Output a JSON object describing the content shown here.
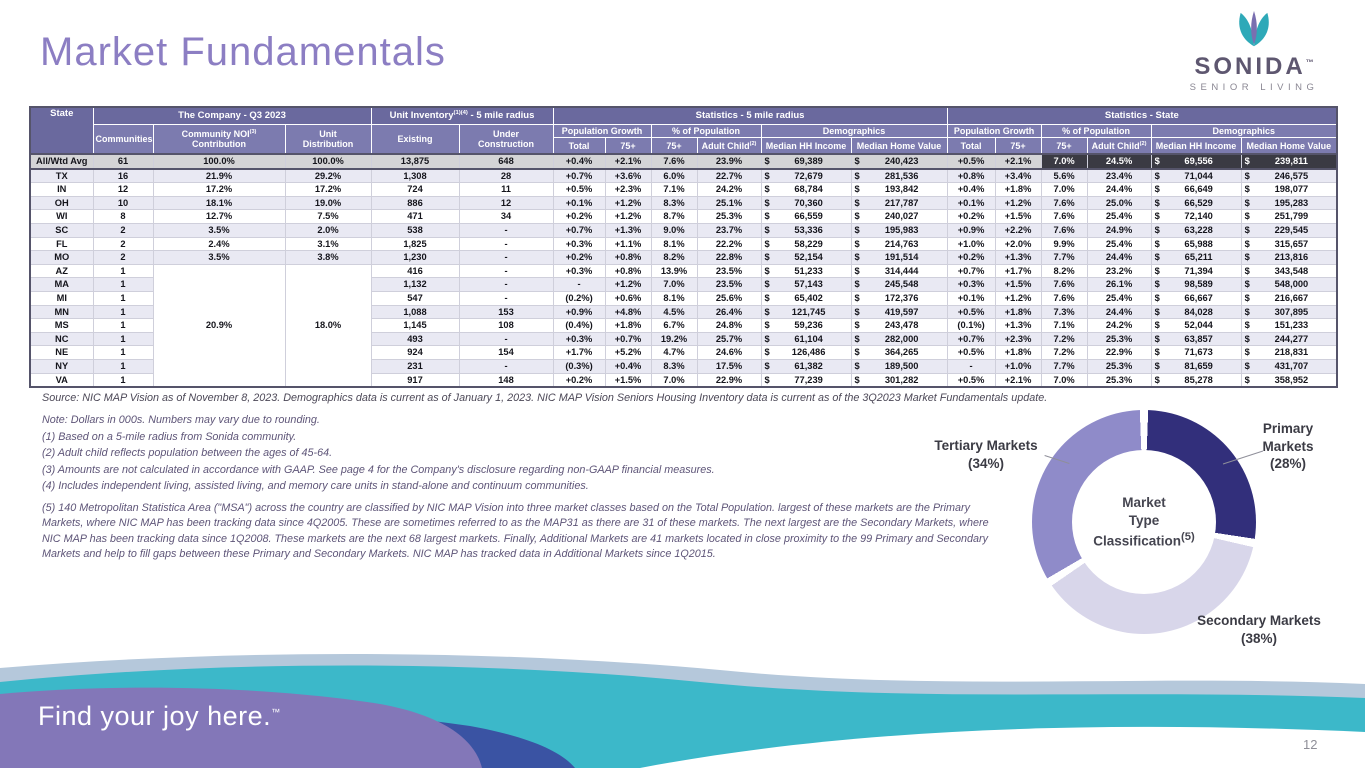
{
  "page": {
    "title": "Market Fundamentals",
    "page_number": "12",
    "tagline": "Find your joy here.",
    "tagline_tm": "™"
  },
  "logo": {
    "brand": "SONIDA",
    "tm": "™",
    "subtitle": "SENIOR LIVING"
  },
  "table": {
    "h": {
      "state": "State",
      "company": "The Company - Q3 2023",
      "inventory_a": "Unit Inventory",
      "inventory_sup": "(1)(4)",
      "inventory_b": " - 5 mile radius",
      "stats5": "Statistics - 5 mile radius",
      "statsState": "Statistics - State",
      "communities": "Communities",
      "noi_a": "Community NOI",
      "noi_sup": "(3)",
      "noi_b": "Contribution",
      "unit_a": "Unit",
      "unit_b": "Distribution",
      "existing": "Existing",
      "under_a": "Under",
      "under_b": "Construction",
      "pop_growth": "Population Growth",
      "pct_pop": "% of Population",
      "demographics": "Demographics",
      "total": "Total",
      "p75": "75+",
      "adult_a": "Adult Child",
      "adult_sup": "(2)",
      "hh": "Median HH Income",
      "home": "Median Home Value"
    },
    "merged": {
      "noi": "20.9%",
      "unit": "18.0%",
      "span": 9
    },
    "rows": [
      {
        "state": "All/Wtd Avg",
        "communities": "61",
        "noi": "100.0%",
        "unit": "100.0%",
        "existing": "13,875",
        "under": "648",
        "m5": [
          "+0.4%",
          "+2.1%",
          "7.6%",
          "23.9%",
          "$ 69,389",
          "$ 240,423"
        ],
        "st": [
          "+0.5%",
          "+2.1%",
          "7.0%",
          "24.5%",
          "$ 69,556",
          "$ 239,811"
        ]
      },
      {
        "state": "TX",
        "communities": "16",
        "noi": "21.9%",
        "unit": "29.2%",
        "existing": "1,308",
        "under": "28",
        "m5": [
          "+0.7%",
          "+3.6%",
          "6.0%",
          "22.7%",
          "$ 72,679",
          "$ 281,536"
        ],
        "st": [
          "+0.8%",
          "+3.4%",
          "5.6%",
          "23.4%",
          "$ 71,044",
          "$ 246,575"
        ]
      },
      {
        "state": "IN",
        "communities": "12",
        "noi": "17.2%",
        "unit": "17.2%",
        "existing": "724",
        "under": "11",
        "m5": [
          "+0.5%",
          "+2.3%",
          "7.1%",
          "24.2%",
          "$ 68,784",
          "$ 193,842"
        ],
        "st": [
          "+0.4%",
          "+1.8%",
          "7.0%",
          "24.4%",
          "$ 66,649",
          "$ 198,077"
        ]
      },
      {
        "state": "OH",
        "communities": "10",
        "noi": "18.1%",
        "unit": "19.0%",
        "existing": "886",
        "under": "12",
        "m5": [
          "+0.1%",
          "+1.2%",
          "8.3%",
          "25.1%",
          "$ 70,360",
          "$ 217,787"
        ],
        "st": [
          "+0.1%",
          "+1.2%",
          "7.6%",
          "25.0%",
          "$ 66,529",
          "$ 195,283"
        ]
      },
      {
        "state": "WI",
        "communities": "8",
        "noi": "12.7%",
        "unit": "7.5%",
        "existing": "471",
        "under": "34",
        "m5": [
          "+0.2%",
          "+1.2%",
          "8.7%",
          "25.3%",
          "$ 66,559",
          "$ 240,027"
        ],
        "st": [
          "+0.2%",
          "+1.5%",
          "7.6%",
          "25.4%",
          "$ 72,140",
          "$ 251,799"
        ]
      },
      {
        "state": "SC",
        "communities": "2",
        "noi": "3.5%",
        "unit": "2.0%",
        "existing": "538",
        "under": "-",
        "m5": [
          "+0.7%",
          "+1.3%",
          "9.0%",
          "23.7%",
          "$ 53,336",
          "$ 195,983"
        ],
        "st": [
          "+0.9%",
          "+2.2%",
          "7.6%",
          "24.9%",
          "$ 63,228",
          "$ 229,545"
        ]
      },
      {
        "state": "FL",
        "communities": "2",
        "noi": "2.4%",
        "unit": "3.1%",
        "existing": "1,825",
        "under": "-",
        "m5": [
          "+0.3%",
          "+1.1%",
          "8.1%",
          "22.2%",
          "$ 58,229",
          "$ 214,763"
        ],
        "st": [
          "+1.0%",
          "+2.0%",
          "9.9%",
          "25.4%",
          "$ 65,988",
          "$ 315,657"
        ]
      },
      {
        "state": "MO",
        "communities": "2",
        "noi": "3.5%",
        "unit": "3.8%",
        "existing": "1,230",
        "under": "-",
        "m5": [
          "+0.2%",
          "+0.8%",
          "8.2%",
          "22.8%",
          "$ 52,154",
          "$ 191,514"
        ],
        "st": [
          "+0.2%",
          "+1.3%",
          "7.7%",
          "24.4%",
          "$ 65,211",
          "$ 213,816"
        ]
      },
      {
        "state": "AZ",
        "communities": "1",
        "mergeStart": true,
        "existing": "416",
        "under": "-",
        "m5": [
          "+0.3%",
          "+0.8%",
          "13.9%",
          "23.5%",
          "$ 51,233",
          "$ 314,444"
        ],
        "st": [
          "+0.7%",
          "+1.7%",
          "8.2%",
          "23.2%",
          "$ 71,394",
          "$ 343,548"
        ]
      },
      {
        "state": "MA",
        "communities": "1",
        "existing": "1,132",
        "under": "-",
        "m5": [
          "-",
          "+1.2%",
          "7.0%",
          "23.5%",
          "$ 57,143",
          "$ 245,548"
        ],
        "st": [
          "+0.3%",
          "+1.5%",
          "7.6%",
          "26.1%",
          "$ 98,589",
          "$ 548,000"
        ]
      },
      {
        "state": "MI",
        "communities": "1",
        "existing": "547",
        "under": "-",
        "m5": [
          "(0.2%)",
          "+0.6%",
          "8.1%",
          "25.6%",
          "$ 65,402",
          "$ 172,376"
        ],
        "st": [
          "+0.1%",
          "+1.2%",
          "7.6%",
          "25.4%",
          "$ 66,667",
          "$ 216,667"
        ]
      },
      {
        "state": "MN",
        "communities": "1",
        "existing": "1,088",
        "under": "153",
        "m5": [
          "+0.9%",
          "+4.8%",
          "4.5%",
          "26.4%",
          "$ 121,745",
          "$ 419,597"
        ],
        "st": [
          "+0.5%",
          "+1.8%",
          "7.3%",
          "24.4%",
          "$ 84,028",
          "$ 307,895"
        ]
      },
      {
        "state": "MS",
        "communities": "1",
        "existing": "1,145",
        "under": "108",
        "m5": [
          "(0.4%)",
          "+1.8%",
          "6.7%",
          "24.8%",
          "$ 59,236",
          "$ 243,478"
        ],
        "st": [
          "(0.1%)",
          "+1.3%",
          "7.1%",
          "24.2%",
          "$ 52,044",
          "$ 151,233"
        ]
      },
      {
        "state": "NC",
        "communities": "1",
        "existing": "493",
        "under": "-",
        "m5": [
          "+0.3%",
          "+0.7%",
          "19.2%",
          "25.7%",
          "$ 61,104",
          "$ 282,000"
        ],
        "st": [
          "+0.7%",
          "+2.3%",
          "7.2%",
          "25.3%",
          "$ 63,857",
          "$ 244,277"
        ]
      },
      {
        "state": "NE",
        "communities": "1",
        "existing": "924",
        "under": "154",
        "m5": [
          "+1.7%",
          "+5.2%",
          "4.7%",
          "24.6%",
          "$ 126,486",
          "$ 364,265"
        ],
        "st": [
          "+0.5%",
          "+1.8%",
          "7.2%",
          "22.9%",
          "$ 71,673",
          "$ 218,831"
        ]
      },
      {
        "state": "NY",
        "communities": "1",
        "existing": "231",
        "under": "-",
        "m5": [
          "(0.3%)",
          "+0.4%",
          "8.3%",
          "17.5%",
          "$ 61,382",
          "$ 189,500"
        ],
        "st": [
          "-",
          "+1.0%",
          "7.7%",
          "25.3%",
          "$ 81,659",
          "$ 431,707"
        ]
      },
      {
        "state": "VA",
        "communities": "1",
        "existing": "917",
        "under": "148",
        "m5": [
          "+0.2%",
          "+1.5%",
          "7.0%",
          "22.9%",
          "$ 77,239",
          "$ 301,282"
        ],
        "st": [
          "+0.5%",
          "+2.1%",
          "7.0%",
          "25.3%",
          "$ 85,278",
          "$ 358,952"
        ]
      }
    ]
  },
  "source": "Source:  NIC MAP Vision as of November 8, 2023. Demographics data is current as of January 1, 2023.  NIC MAP Vision Seniors Housing Inventory data is current as of the 3Q2023 Market Fundamentals update.",
  "notes": [
    "Note: Dollars in 000s. Numbers may vary due to rounding.",
    "(1) Based on a 5-mile radius from Sonida community.",
    "(2) Adult child reflects population between the ages of 45-64.",
    "(3) Amounts are not calculated in accordance with GAAP. See page 4 for the Company's disclosure regarding non-GAAP financial measures.",
    "(4) Includes independent living, assisted living, and memory care units in stand-alone and continuum communities."
  ],
  "note5": "(5) 140 Metropolitan Statistica Area (\"MSA\") across the country are classified by NIC MAP Vision into three market classes based on the Total Population. largest of these markets are the Primary Markets, where NIC MAP has been tracking data since 4Q2005.  These are sometimes referred to as the MAP31 as there are 31 of these markets.  The next largest are the Secondary Markets, where NIC MAP has been tracking data since 1Q2008.  These markets are the next 68 largest markets.  Finally, Additional Markets are 41 markets located in close proximity to the 99 Primary and Secondary Markets and help to fill gaps between these Primary and Secondary Markets.  NIC MAP has tracked data in Additional Markets since 1Q2015.",
  "chart_data": {
    "type": "pie",
    "donut": true,
    "title": "Market Type Classification(5)",
    "center": {
      "l1": "Market",
      "l2": "Type",
      "l3": "Classification",
      "sup": "(5)"
    },
    "labels": [
      "Primary Markets",
      "Secondary Markets",
      "Tertiary Markets"
    ],
    "values": [
      28,
      38,
      34
    ],
    "colors": [
      "#322F7B",
      "#D8D6EA",
      "#8F8BC9"
    ],
    "legend_position": "outside-callouts"
  },
  "colors": {
    "accent_purple": "#8C7EC3",
    "header_dark": "#6A699E",
    "header_mid": "#7C7BAF",
    "negative": "#C00000",
    "teal": "#3CB8C9",
    "indigo": "#3A53A3",
    "wave_purple": "#8377B8",
    "pale_blue": "#B5C8DB"
  }
}
